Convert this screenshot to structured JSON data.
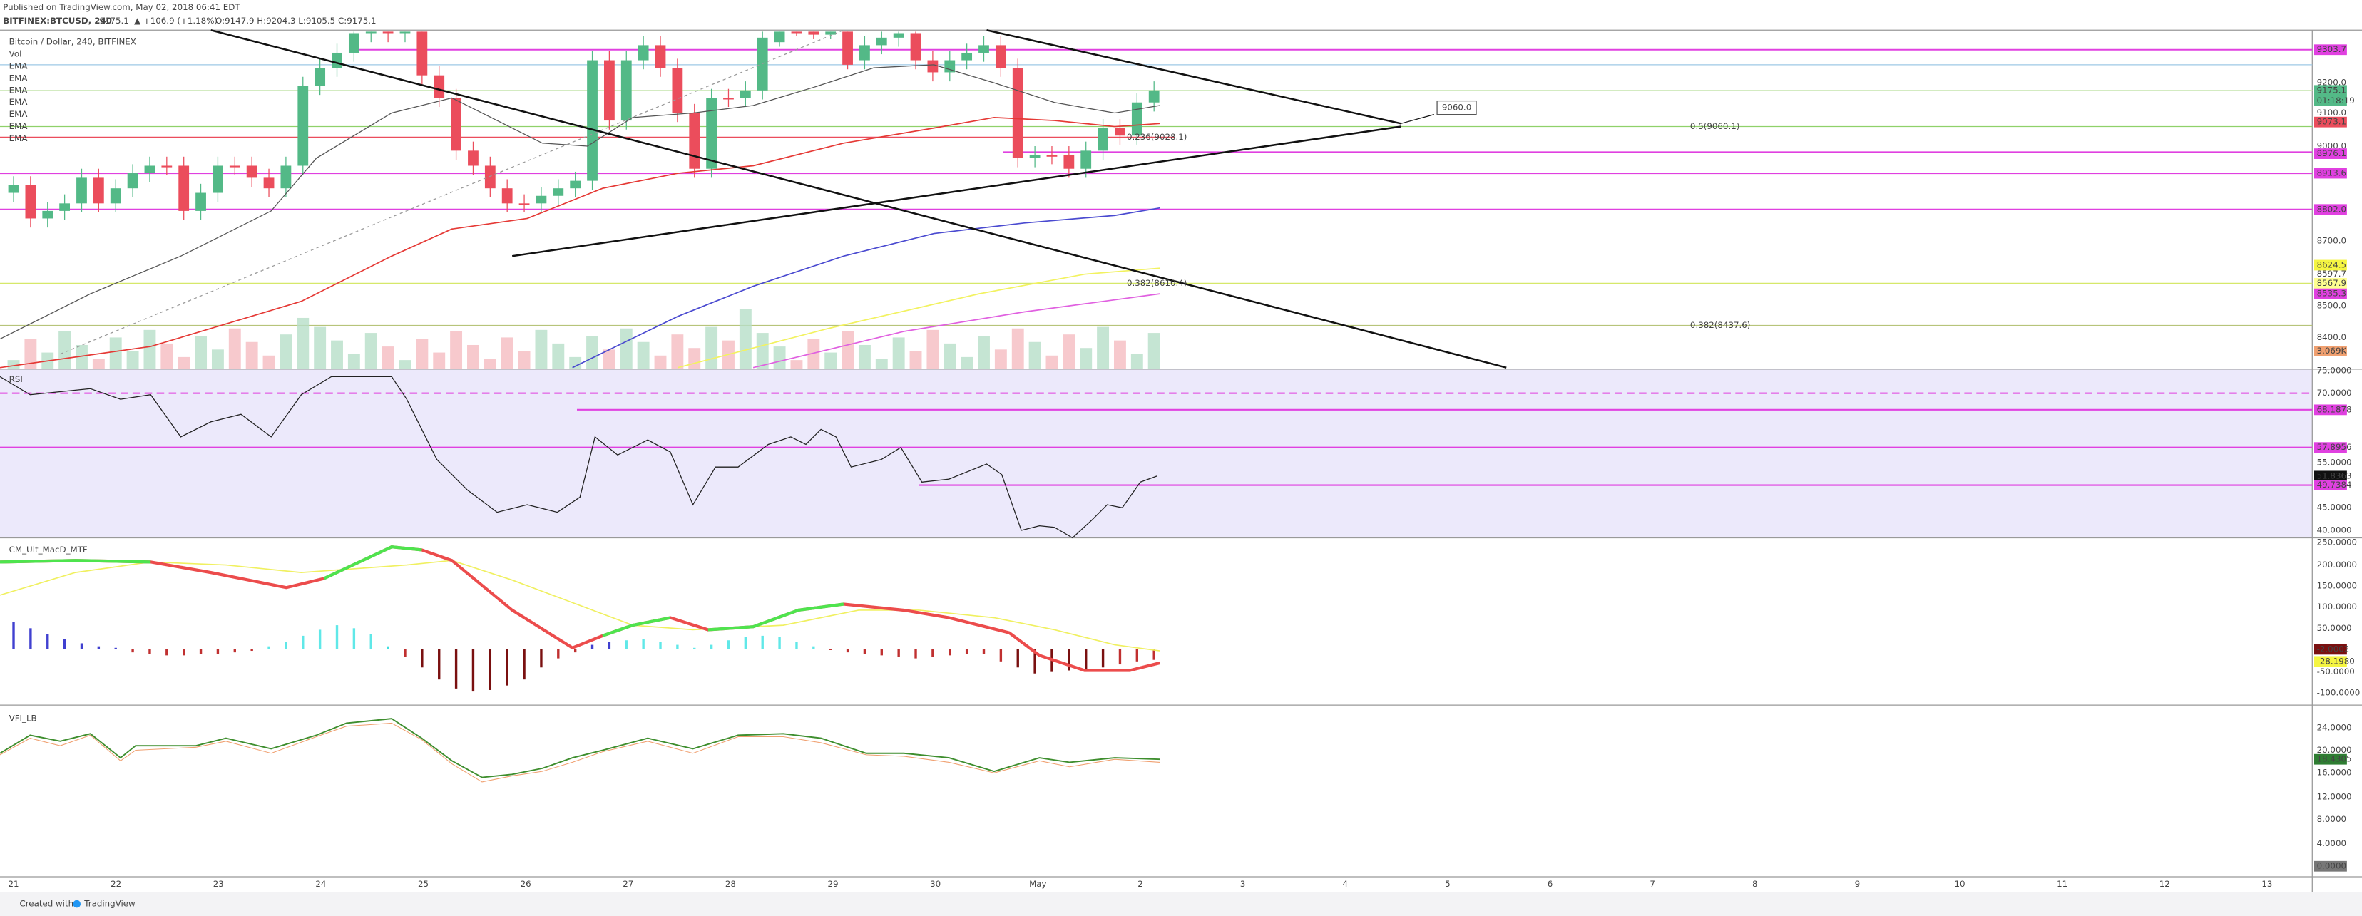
{
  "header": {
    "published": "Published on TradingView.com, May 02, 2018 06:41 EDT",
    "symbol": "BITFINEX:BTCUSD, 240",
    "last": "9175.1",
    "change": "▲ +106.9 (+1.18%)",
    "ohlc": "O:9147.9 H:9204.3 L:9105.5 C:9175.1"
  },
  "main": {
    "title": "Bitcoin / Dollar, 240, BITFINEX",
    "indicators": [
      "Vol",
      "EMA",
      "EMA",
      "EMA",
      "EMA",
      "EMA",
      "EMA",
      "EMA"
    ],
    "annotations": [
      "9060.0",
      "0.5(9060.1)",
      "0.236(9028.1)",
      "0.382(8610.4)",
      "0.382(8437.6)"
    ],
    "price_axis": [
      "9303.7",
      "9200.0",
      "9175.1",
      "01:18:19",
      "9100.0",
      "9073.1",
      "9000.0",
      "8976.1",
      "8913.6",
      "8802.0",
      "8700.0",
      "8624.5",
      "8597.7",
      "8567.9",
      "8535.3",
      "8500.0",
      "8400.0",
      "3.069K"
    ]
  },
  "rsi": {
    "title": "RSI",
    "axis": [
      "75.0000",
      "70.0000",
      "68.1878",
      "57.8956",
      "55.0000",
      "51.8363",
      "49.7384",
      "45.0000",
      "40.0000"
    ]
  },
  "macd": {
    "title": "CM_Ult_MacD_MTF",
    "axis": [
      "250.0000",
      "200.0000",
      "150.0000",
      "100.0000",
      "50.0000",
      "-2.0002",
      "-28.1980",
      "-50.0000",
      "-100.0000"
    ]
  },
  "vfi": {
    "title": "VFI_LB",
    "axis": [
      "24.0000",
      "20.0000",
      "18.4305",
      "16.0000",
      "12.0000",
      "8.0000",
      "4.0000",
      "0.0000"
    ]
  },
  "time_axis": [
    "21",
    "22",
    "23",
    "24",
    "25",
    "26",
    "27",
    "28",
    "29",
    "30",
    "May",
    "2",
    "3",
    "4",
    "5",
    "6",
    "7",
    "8",
    "9",
    "10",
    "11",
    "12",
    "13"
  ],
  "footer": {
    "created": "Created with",
    "brand": "TradingView"
  }
}
